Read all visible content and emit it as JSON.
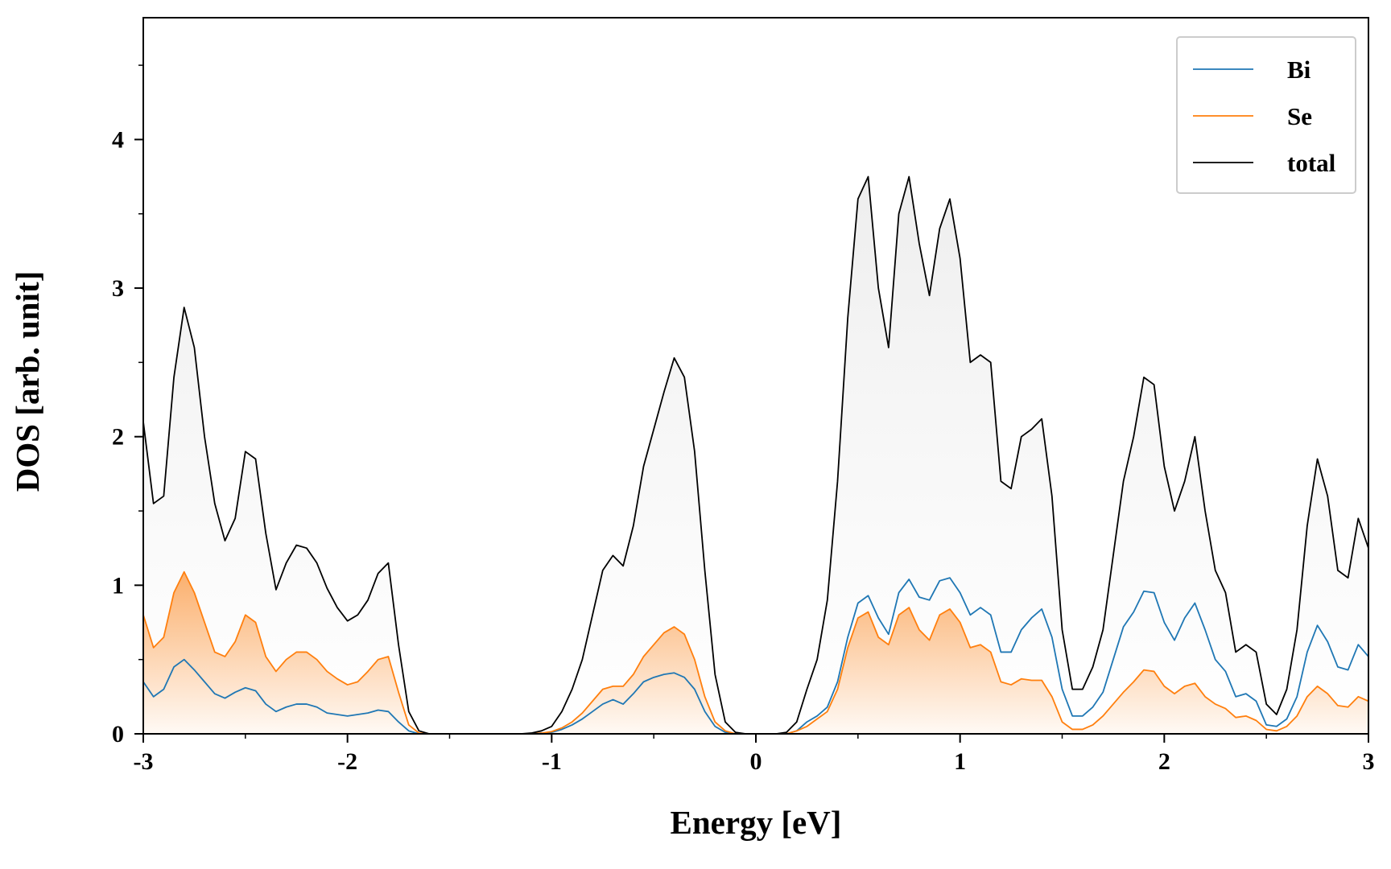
{
  "chart_data": {
    "type": "line",
    "xlabel": "Energy [eV]",
    "ylabel": "DOS [arb. unit]",
    "xlim": [
      -3,
      3
    ],
    "ylim": [
      0,
      4.82
    ],
    "xticks": [
      -3,
      -2,
      -1,
      0,
      1,
      2,
      3
    ],
    "xticks_minor": [
      -2.5,
      -1.5,
      -0.5,
      0.5,
      1.5,
      2.5
    ],
    "yticks": [
      0,
      1,
      2,
      3,
      4
    ],
    "yticks_minor": [
      0.5,
      1.5,
      2.5,
      3.5,
      4.5
    ],
    "legend": "upper right",
    "x": [
      -3,
      -2.95,
      -2.9,
      -2.85,
      -2.8,
      -2.75,
      -2.7,
      -2.65,
      -2.6,
      -2.55,
      -2.5,
      -2.45,
      -2.4,
      -2.35,
      -2.3,
      -2.25,
      -2.2,
      -2.15,
      -2.1,
      -2.05,
      -2,
      -1.95,
      -1.9,
      -1.85,
      -1.8,
      -1.75,
      -1.7,
      -1.65,
      -1.6,
      -1.55,
      -1.5,
      -1.45,
      -1.4,
      -1.35,
      -1.3,
      -1.25,
      -1.2,
      -1.15,
      -1.1,
      -1.05,
      -1,
      -0.95,
      -0.9,
      -0.85,
      -0.8,
      -0.75,
      -0.7,
      -0.65,
      -0.6,
      -0.55,
      -0.5,
      -0.45,
      -0.4,
      -0.35,
      -0.3,
      -0.25,
      -0.2,
      -0.15,
      -0.1,
      -0.05,
      0,
      0.05,
      0.1,
      0.15,
      0.2,
      0.25,
      0.3,
      0.35,
      0.4,
      0.45,
      0.5,
      0.55,
      0.6,
      0.65,
      0.7,
      0.75,
      0.8,
      0.85,
      0.9,
      0.95,
      1,
      1.05,
      1.1,
      1.15,
      1.2,
      1.25,
      1.3,
      1.35,
      1.4,
      1.45,
      1.5,
      1.55,
      1.6,
      1.65,
      1.7,
      1.75,
      1.8,
      1.85,
      1.9,
      1.95,
      2,
      2.05,
      2.1,
      2.15,
      2.2,
      2.25,
      2.3,
      2.35,
      2.4,
      2.45,
      2.5,
      2.55,
      2.6,
      2.65,
      2.7,
      2.75,
      2.8,
      2.85,
      2.9,
      2.95,
      3
    ],
    "series": [
      {
        "name": "Bi",
        "color": "#1f77b4",
        "fill": false,
        "values": [
          0.35,
          0.25,
          0.3,
          0.45,
          0.5,
          0.43,
          0.35,
          0.27,
          0.24,
          0.28,
          0.31,
          0.29,
          0.2,
          0.15,
          0.18,
          0.2,
          0.2,
          0.18,
          0.14,
          0.13,
          0.12,
          0.13,
          0.14,
          0.16,
          0.15,
          0.08,
          0.02,
          0,
          0,
          0,
          0,
          0,
          0,
          0,
          0,
          0,
          0,
          0,
          0,
          0.005,
          0.01,
          0.03,
          0.06,
          0.1,
          0.15,
          0.2,
          0.23,
          0.2,
          0.27,
          0.35,
          0.38,
          0.4,
          0.41,
          0.38,
          0.3,
          0.15,
          0.05,
          0.01,
          0,
          0,
          0,
          0,
          0,
          0,
          0.02,
          0.08,
          0.12,
          0.18,
          0.35,
          0.65,
          0.88,
          0.93,
          0.78,
          0.67,
          0.95,
          1.04,
          0.92,
          0.9,
          1.03,
          1.05,
          0.95,
          0.8,
          0.85,
          0.8,
          0.55,
          0.55,
          0.7,
          0.78,
          0.84,
          0.65,
          0.3,
          0.12,
          0.12,
          0.18,
          0.28,
          0.5,
          0.72,
          0.82,
          0.96,
          0.95,
          0.75,
          0.63,
          0.78,
          0.88,
          0.7,
          0.5,
          0.42,
          0.25,
          0.27,
          0.22,
          0.06,
          0.05,
          0.1,
          0.25,
          0.55,
          0.73,
          0.62,
          0.45,
          0.43,
          0.6,
          0.52
        ]
      },
      {
        "name": "Se",
        "color": "#ff7f0e",
        "fill": true,
        "values": [
          0.8,
          0.58,
          0.65,
          0.95,
          1.09,
          0.95,
          0.75,
          0.55,
          0.52,
          0.62,
          0.8,
          0.75,
          0.52,
          0.42,
          0.5,
          0.55,
          0.55,
          0.5,
          0.42,
          0.37,
          0.33,
          0.35,
          0.42,
          0.5,
          0.52,
          0.28,
          0.06,
          0.005,
          0,
          0,
          0,
          0,
          0,
          0,
          0,
          0,
          0,
          0,
          0,
          0.005,
          0.015,
          0.04,
          0.08,
          0.14,
          0.22,
          0.3,
          0.32,
          0.32,
          0.4,
          0.52,
          0.6,
          0.68,
          0.72,
          0.67,
          0.5,
          0.25,
          0.08,
          0.02,
          0,
          0,
          0,
          0,
          0,
          0,
          0.02,
          0.05,
          0.1,
          0.15,
          0.3,
          0.58,
          0.78,
          0.82,
          0.65,
          0.6,
          0.8,
          0.85,
          0.7,
          0.63,
          0.8,
          0.84,
          0.75,
          0.58,
          0.6,
          0.55,
          0.35,
          0.33,
          0.37,
          0.36,
          0.36,
          0.25,
          0.08,
          0.03,
          0.03,
          0.06,
          0.12,
          0.2,
          0.28,
          0.35,
          0.43,
          0.42,
          0.32,
          0.27,
          0.32,
          0.34,
          0.25,
          0.2,
          0.17,
          0.11,
          0.12,
          0.09,
          0.03,
          0.02,
          0.05,
          0.12,
          0.25,
          0.32,
          0.27,
          0.19,
          0.18,
          0.25,
          0.22
        ]
      },
      {
        "name": "total",
        "color": "#000000",
        "fill": true,
        "values": [
          2.1,
          1.55,
          1.6,
          2.4,
          2.87,
          2.6,
          2.0,
          1.55,
          1.3,
          1.45,
          1.9,
          1.85,
          1.35,
          0.97,
          1.15,
          1.27,
          1.25,
          1.15,
          0.98,
          0.85,
          0.76,
          0.8,
          0.9,
          1.08,
          1.15,
          0.6,
          0.15,
          0.02,
          0,
          0,
          0,
          0,
          0,
          0,
          0,
          0,
          0,
          0,
          0.005,
          0.02,
          0.05,
          0.15,
          0.3,
          0.5,
          0.8,
          1.1,
          1.2,
          1.13,
          1.4,
          1.8,
          2.05,
          2.3,
          2.53,
          2.4,
          1.9,
          1.1,
          0.4,
          0.08,
          0.01,
          0,
          0,
          0,
          0,
          0.01,
          0.08,
          0.3,
          0.5,
          0.9,
          1.7,
          2.8,
          3.6,
          3.75,
          3.0,
          2.6,
          3.5,
          3.75,
          3.3,
          2.95,
          3.4,
          3.6,
          3.2,
          2.5,
          2.55,
          2.5,
          1.7,
          1.65,
          2.0,
          2.05,
          2.12,
          1.6,
          0.7,
          0.3,
          0.3,
          0.45,
          0.7,
          1.2,
          1.7,
          2.0,
          2.4,
          2.35,
          1.8,
          1.5,
          1.7,
          2.0,
          1.5,
          1.1,
          0.95,
          0.55,
          0.6,
          0.55,
          0.2,
          0.13,
          0.3,
          0.7,
          1.4,
          1.85,
          1.6,
          1.1,
          1.05,
          1.45,
          1.25
        ]
      }
    ]
  }
}
